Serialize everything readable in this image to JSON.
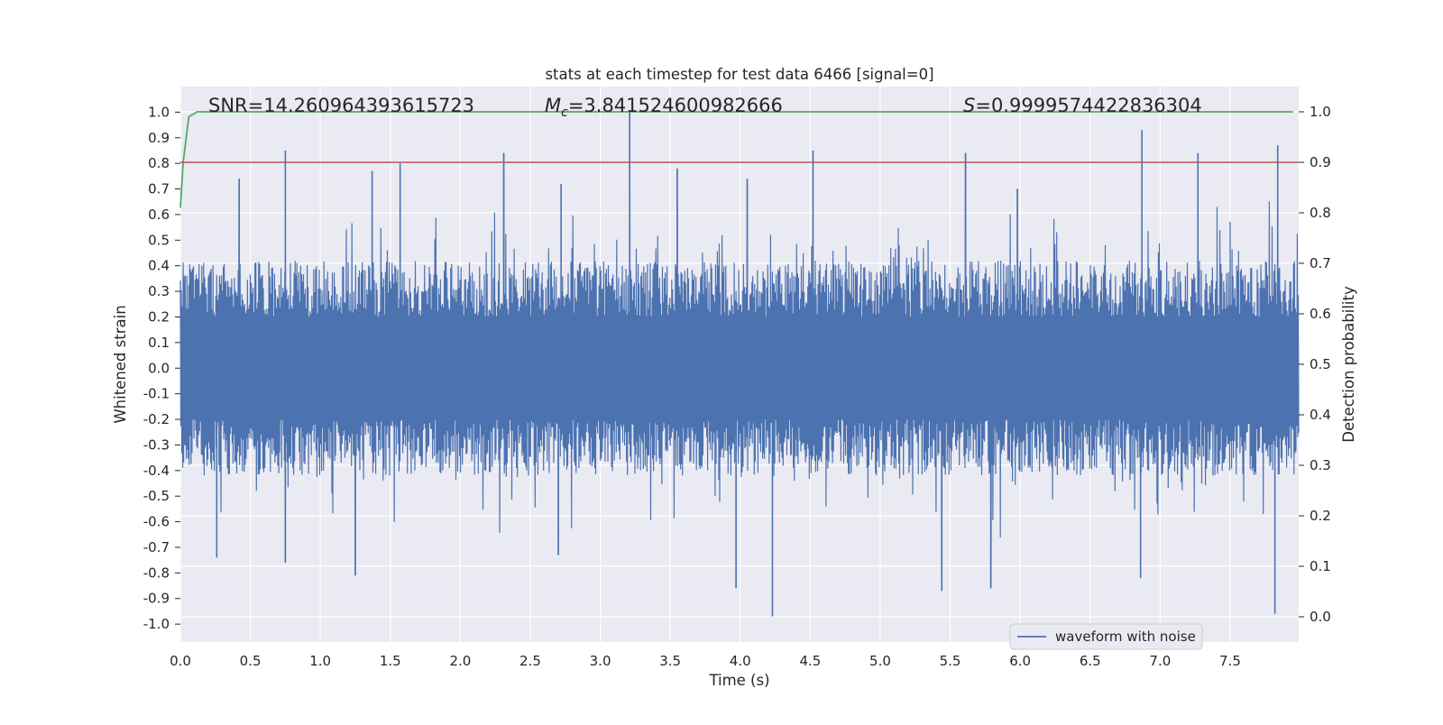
{
  "chart_data": {
    "type": "line",
    "title": "stats at each timestep for test data 6466 [signal=0]",
    "xlabel": "Time (s)",
    "ylabel": "Whitened strain",
    "y2label": "Detection probability",
    "xlim": [
      0.0,
      7.99
    ],
    "ylim": [
      -1.07,
      1.1
    ],
    "y2lim": [
      -0.05,
      1.05
    ],
    "x_ticks": [
      0.0,
      0.5,
      1.0,
      1.5,
      2.0,
      2.5,
      3.0,
      3.5,
      4.0,
      4.5,
      5.0,
      5.5,
      6.0,
      6.5,
      7.0,
      7.5
    ],
    "x_tick_labels": [
      "0.0",
      "0.5",
      "1.0",
      "1.5",
      "2.0",
      "2.5",
      "3.0",
      "3.5",
      "4.0",
      "4.5",
      "5.0",
      "5.5",
      "6.0",
      "6.5",
      "7.0",
      "7.5"
    ],
    "y_ticks": [
      1.0,
      0.9,
      0.8,
      0.7,
      0.6,
      0.5,
      0.4,
      0.3,
      0.2,
      0.1,
      0.0,
      -0.1,
      -0.2,
      -0.3,
      -0.4,
      -0.5,
      -0.6,
      -0.7,
      -0.8,
      -0.9,
      -1.0
    ],
    "y_tick_labels": [
      "1.0",
      "0.9",
      "0.8",
      "0.7",
      "0.6",
      "0.5",
      "0.4",
      "0.3",
      "0.2",
      "0.1",
      "0.0",
      "-0.1",
      "-0.2",
      "-0.3",
      "-0.4",
      "-0.5",
      "-0.6",
      "-0.7",
      "-0.8",
      "-0.9",
      "-1.0"
    ],
    "y2_ticks": [
      1.0,
      0.9,
      0.8,
      0.7,
      0.6,
      0.5,
      0.4,
      0.3,
      0.2,
      0.1,
      0.0
    ],
    "y2_tick_labels": [
      "1.0",
      "0.9",
      "0.8",
      "0.7",
      "0.6",
      "0.5",
      "0.4",
      "0.3",
      "0.2",
      "0.1",
      "0.0"
    ],
    "annotations": {
      "snr": "SNR=14.260964393615723",
      "mc": "=3.841524600982666",
      "mc_symbol": "M",
      "mc_subscript": "c",
      "s": "=0.9999574422836304",
      "s_symbol": "S"
    },
    "series": [
      {
        "name": "waveform with noise",
        "color": "#4c72b0",
        "axis": "left",
        "peaks_positive": [
          [
            0.75,
            0.85
          ],
          [
            1.57,
            0.8
          ],
          [
            2.31,
            0.84
          ],
          [
            3.21,
            1.0
          ],
          [
            3.55,
            0.78
          ],
          [
            4.52,
            0.85
          ],
          [
            5.61,
            0.84
          ],
          [
            6.87,
            0.93
          ],
          [
            7.27,
            0.84
          ],
          [
            7.84,
            0.87
          ],
          [
            0.42,
            0.74
          ],
          [
            1.37,
            0.77
          ],
          [
            2.72,
            0.72
          ],
          [
            4.05,
            0.74
          ],
          [
            5.98,
            0.7
          ]
        ],
        "peaks_negative": [
          [
            1.25,
            -0.81
          ],
          [
            3.97,
            -0.86
          ],
          [
            4.23,
            -0.97
          ],
          [
            5.44,
            -0.87
          ],
          [
            5.79,
            -0.86
          ],
          [
            6.86,
            -0.82
          ],
          [
            7.82,
            -0.96
          ],
          [
            0.26,
            -0.74
          ],
          [
            0.75,
            -0.76
          ],
          [
            2.7,
            -0.73
          ]
        ]
      },
      {
        "name": "",
        "color": "#55a868",
        "axis": "right",
        "x": [
          0.0,
          0.02,
          0.06,
          0.12,
          7.95
        ],
        "y": [
          0.81,
          0.9,
          0.99,
          1.0,
          1.0
        ]
      },
      {
        "name": "",
        "color": "#c44e52",
        "axis": "right",
        "x": [
          0.0,
          7.99
        ],
        "y": [
          0.9,
          0.9
        ]
      }
    ],
    "legend": {
      "placement": "lower-right",
      "entries": [
        "waveform with noise"
      ]
    },
    "grid": true,
    "colors": {
      "background": "#eaeaf2",
      "grid": "#ffffff",
      "waveform": "#4c72b0",
      "probability": "#55a868",
      "threshold": "#c44e52"
    }
  }
}
